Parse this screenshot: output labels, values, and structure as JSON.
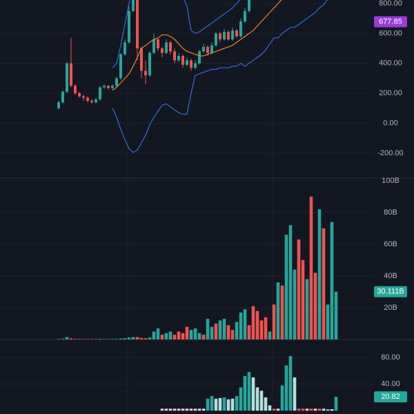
{
  "chart_data": [
    {
      "type": "candlestick",
      "ylim": [
        -366,
        823
      ],
      "yticks": [
        {
          "value": -200,
          "label": "-200.00"
        },
        {
          "value": 0,
          "label": "0.00"
        },
        {
          "value": 200,
          "label": "200.00"
        },
        {
          "value": 400,
          "label": "400.00"
        },
        {
          "value": 600,
          "label": "600.00"
        },
        {
          "value": 800,
          "label": "800.00"
        }
      ],
      "grid": true,
      "up_color": "#26a69a",
      "down_color": "#ef5350",
      "open": [
        100,
        140,
        210,
        400,
        250,
        200,
        180,
        170,
        150,
        140,
        160,
        240,
        250,
        235,
        250,
        300,
        460,
        540,
        750,
        830,
        500,
        350,
        320,
        470,
        560,
        500,
        470,
        540,
        480,
        420,
        450,
        390,
        420,
        370,
        400,
        480,
        510,
        470,
        520,
        600,
        560,
        610,
        560,
        620,
        580,
        680,
        750,
        null,
        null,
        null,
        null,
        null,
        null,
        null,
        null,
        null,
        null,
        null,
        null,
        null,
        null,
        null,
        null,
        null,
        null,
        null,
        null,
        null
      ],
      "high": [
        150,
        220,
        410,
        570,
        260,
        210,
        190,
        180,
        160,
        170,
        250,
        260,
        255,
        260,
        310,
        470,
        560,
        780,
        850,
        850,
        510,
        420,
        480,
        600,
        570,
        510,
        560,
        550,
        500,
        470,
        460,
        440,
        430,
        420,
        490,
        530,
        520,
        540,
        610,
        610,
        630,
        620,
        640,
        630,
        700,
        770,
        850,
        null,
        null,
        null,
        null,
        null,
        null,
        null,
        null,
        null,
        null,
        null,
        null,
        null,
        null,
        null,
        null,
        null,
        null,
        null,
        null,
        null
      ],
      "low": [
        90,
        130,
        200,
        240,
        190,
        170,
        150,
        140,
        130,
        130,
        150,
        230,
        225,
        225,
        240,
        290,
        450,
        530,
        740,
        420,
        300,
        260,
        310,
        460,
        480,
        440,
        460,
        460,
        400,
        410,
        370,
        380,
        350,
        360,
        390,
        470,
        450,
        460,
        510,
        540,
        550,
        550,
        550,
        570,
        570,
        670,
        740,
        null,
        null,
        null,
        null,
        null,
        null,
        null,
        null,
        null,
        null,
        null,
        null,
        null,
        null,
        null,
        null,
        null,
        null,
        null,
        null,
        null
      ],
      "close": [
        140,
        210,
        400,
        250,
        200,
        180,
        170,
        150,
        140,
        160,
        240,
        250,
        235,
        250,
        300,
        460,
        540,
        750,
        830,
        500,
        350,
        320,
        470,
        560,
        500,
        470,
        540,
        480,
        420,
        450,
        390,
        420,
        370,
        400,
        480,
        510,
        470,
        520,
        600,
        560,
        610,
        560,
        620,
        580,
        680,
        750,
        830,
        null,
        null,
        null,
        null,
        null,
        null,
        null,
        null,
        null,
        null,
        null,
        null,
        null,
        null,
        null,
        null,
        null,
        null,
        null,
        null,
        null
      ],
      "overlays": [
        {
          "color": "#2f6fe4",
          "values": [
            null,
            null,
            null,
            null,
            null,
            null,
            null,
            null,
            null,
            null,
            null,
            null,
            null,
            370,
            400,
            520,
            660,
            800,
            900,
            null,
            null,
            null,
            null,
            null,
            null,
            null,
            null,
            null,
            null,
            null,
            850,
            780,
            620,
            600,
            610,
            630,
            650,
            670,
            690,
            710,
            730,
            750,
            770,
            800,
            830,
            null,
            null,
            null,
            null,
            null,
            null,
            null,
            null,
            null,
            null,
            null,
            null,
            null,
            null,
            null,
            null,
            null,
            null,
            null,
            null,
            null,
            null,
            null
          ]
        },
        {
          "color": "#2f6fe4",
          "values": [
            null,
            null,
            null,
            null,
            null,
            null,
            null,
            null,
            null,
            null,
            null,
            null,
            null,
            100,
            40,
            -40,
            -110,
            -170,
            -195,
            -180,
            -130,
            -80,
            -10,
            40,
            80,
            120,
            130,
            110,
            90,
            70,
            60,
            60,
            200,
            320,
            330,
            340,
            350,
            360,
            360,
            370,
            370,
            370,
            380,
            380,
            400,
            380,
            400,
            420,
            440,
            460,
            490,
            530,
            570,
            570,
            600,
            620,
            640,
            640,
            660,
            680,
            700,
            720,
            740,
            770,
            790,
            830,
            null,
            null
          ]
        },
        {
          "color": "#f08a24",
          "values": [
            null,
            null,
            null,
            null,
            null,
            null,
            null,
            null,
            null,
            null,
            null,
            null,
            null,
            220,
            240,
            270,
            300,
            330,
            380,
            440,
            500,
            520,
            540,
            560,
            570,
            590,
            590,
            580,
            560,
            530,
            500,
            480,
            470,
            460,
            450,
            450,
            460,
            470,
            480,
            490,
            500,
            510,
            520,
            540,
            560,
            580,
            600,
            620,
            650,
            680,
            710,
            740,
            770,
            800,
            830,
            null,
            null,
            null,
            null,
            null,
            null,
            null,
            null,
            null,
            null,
            null,
            null,
            null
          ]
        }
      ],
      "last_value": 677.85,
      "last_color": "#9c3ad6"
    },
    {
      "type": "bar",
      "ylim": [
        0,
        101.7
      ],
      "yticks": [
        {
          "value": 20,
          "label": "20B"
        },
        {
          "value": 40,
          "label": "40B"
        },
        {
          "value": 60,
          "label": "60B"
        },
        {
          "value": 80,
          "label": "80B"
        },
        {
          "value": 100,
          "label": "100B"
        }
      ],
      "grid": true,
      "values": [
        0.3,
        0.5,
        1.5,
        0.6,
        0.4,
        0.3,
        0.3,
        0.3,
        0.3,
        0.3,
        0.4,
        0.3,
        0.3,
        0.3,
        0.4,
        0.6,
        0.8,
        1.2,
        1.5,
        1.5,
        1,
        0.8,
        1.2,
        5,
        7,
        3,
        4,
        5,
        3,
        5,
        4,
        8,
        6,
        7,
        4,
        3,
        13,
        8,
        10,
        12,
        13,
        9,
        6,
        11,
        17,
        19,
        9,
        21,
        18,
        12,
        14,
        5,
        22,
        36,
        34,
        66,
        72,
        44,
        63,
        50,
        38,
        90,
        42,
        82,
        70,
        22,
        74,
        30.111
      ],
      "colors": [
        "#26a69a",
        "#26a69a",
        "#26a69a",
        "#ef5350",
        "#ef5350",
        "#ef5350",
        "#ef5350",
        "#ef5350",
        "#ef5350",
        "#26a69a",
        "#26a69a",
        "#26a69a",
        "#ef5350",
        "#26a69a",
        "#26a69a",
        "#26a69a",
        "#26a69a",
        "#26a69a",
        "#26a69a",
        "#ef5350",
        "#ef5350",
        "#ef5350",
        "#26a69a",
        "#26a69a",
        "#26a69a",
        "#ef5350",
        "#26a69a",
        "#26a69a",
        "#ef5350",
        "#ef5350",
        "#ef5350",
        "#ef5350",
        "#26a69a",
        "#26a69a",
        "#26a69a",
        "#ef5350",
        "#26a69a",
        "#26a69a",
        "#ef5350",
        "#26a69a",
        "#26a69a",
        "#ef5350",
        "#ef5350",
        "#26a69a",
        "#26a69a",
        "#26a69a",
        "#ef5350",
        "#ef5350",
        "#ef5350",
        "#ef5350",
        "#ef5350",
        "#26a69a",
        "#ef5350",
        "#26a69a",
        "#ef5350",
        "#26a69a",
        "#26a69a",
        "#26a69a",
        "#ef5350",
        "#ef5350",
        "#26a69a",
        "#ef5350",
        "#ef5350",
        "#26a69a",
        "#ef5350",
        "#26a69a",
        "#26a69a",
        "#26a69a"
      ],
      "last_value": {
        "value": 30.111,
        "label": "30.111B"
      },
      "last_color": "#26a69a"
    },
    {
      "type": "bar",
      "ylim": [
        -5,
        107
      ],
      "yticks": [
        {
          "value": 40,
          "label": "40.00"
        },
        {
          "value": 80,
          "label": "80.00"
        }
      ],
      "grid": true,
      "values": [
        null,
        null,
        null,
        null,
        null,
        null,
        null,
        null,
        null,
        null,
        null,
        null,
        null,
        null,
        null,
        null,
        null,
        null,
        null,
        null,
        null,
        null,
        null,
        null,
        null,
        3,
        3,
        3,
        3,
        3,
        3,
        3,
        3,
        3,
        3,
        3,
        18,
        22,
        18,
        19,
        20,
        17,
        18,
        22,
        35,
        52,
        58,
        50,
        35,
        30,
        20,
        8,
        3,
        3,
        38,
        68,
        82,
        50,
        3,
        3,
        3,
        3,
        3,
        3,
        3,
        2,
        2,
        20.82
      ],
      "colors": [
        null,
        null,
        null,
        null,
        null,
        null,
        null,
        null,
        null,
        null,
        null,
        null,
        null,
        null,
        null,
        null,
        null,
        null,
        null,
        null,
        null,
        null,
        null,
        null,
        null,
        "#ffcdd2",
        "#ffcdd2",
        "#ffcdd2",
        "#ffcdd2",
        "#ffcdd2",
        "#ffcdd2",
        "#ffcdd2",
        "#ffcdd2",
        "#ffcdd2",
        "#ffcdd2",
        "#ffcdd2",
        "#26a69a",
        "#26a69a",
        "#b2dfdb",
        "#b2dfdb",
        "#26a69a",
        "#b2dfdb",
        "#b2dfdb",
        "#26a69a",
        "#26a69a",
        "#26a69a",
        "#26a69a",
        "#b2dfdb",
        "#b2dfdb",
        "#b2dfdb",
        "#b2dfdb",
        "#b2dfdb",
        "#ef5350",
        "#ffcdd2",
        "#26a69a",
        "#26a69a",
        "#26a69a",
        "#b2dfdb",
        "#ef5350",
        "#ef5350",
        "#ffcdd2",
        "#ef5350",
        "#ffcdd2",
        "#ef5350",
        "#ffcdd2",
        "#b2dfdb",
        "#ffffff",
        "#26a69a"
      ],
      "last_value": 20.82,
      "last_color": "#26a69a"
    }
  ]
}
